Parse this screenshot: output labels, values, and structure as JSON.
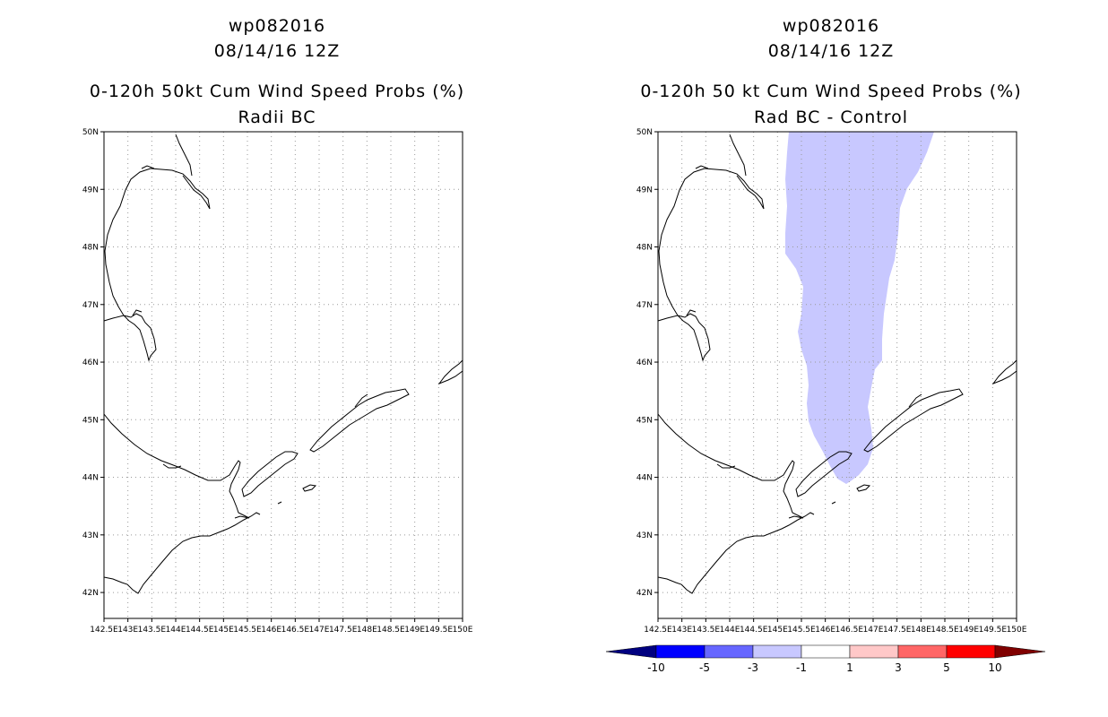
{
  "left_panel": {
    "title_storm": "wp082016",
    "title_date": "08/14/16 12Z",
    "title_product": "0-120h 50kt Cum Wind Speed Probs (%)",
    "title_subtitle": "Radii BC"
  },
  "right_panel": {
    "title_storm": "wp082016",
    "title_date": "08/14/16 12Z",
    "title_product": "0-120h 50 kt Cum Wind Speed Probs (%)",
    "title_subtitle": "Rad BC - Control"
  },
  "map_axes": {
    "lat_labels": [
      "42N",
      "43N",
      "44N",
      "45N",
      "46N",
      "47N",
      "48N",
      "49N",
      "50N"
    ],
    "lon_labels": [
      "142.5E",
      "143E",
      "143.5E",
      "144E",
      "144.5E",
      "145E",
      "145.5E",
      "146E",
      "146.5E",
      "147E",
      "147.5E",
      "148E",
      "148.5E",
      "149E",
      "149.5E",
      "150E"
    ],
    "lat_range": [
      41.55,
      50
    ],
    "lon_range": [
      142.5,
      150
    ]
  },
  "colorbar": {
    "labels": [
      "-10",
      "-5",
      "-3",
      "-1",
      "1",
      "3",
      "5",
      "10"
    ],
    "colors": [
      "#000080",
      "#0000ff",
      "#6666ff",
      "#c8c8ff",
      "#ffffff",
      "#ffc8c8",
      "#ff6666",
      "#ff0000",
      "#800000"
    ]
  },
  "colors": {
    "difference_shading": "#c8c8ff",
    "coastline": "#000000",
    "grid": "#9a9a9a"
  }
}
